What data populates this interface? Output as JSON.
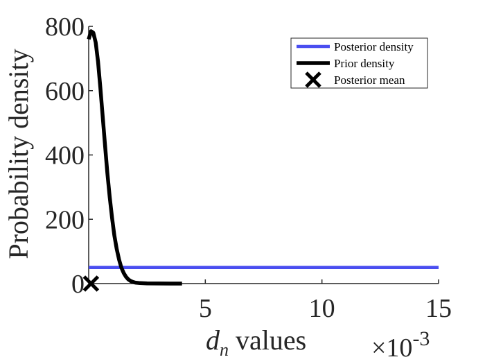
{
  "chart_data": {
    "type": "line",
    "xlabel_var": "d",
    "xlabel_sub": "n",
    "xlabel_rest": " values",
    "ylabel": "Probability density",
    "x_multiplier": {
      "base": "×10",
      "exponent": "-3"
    },
    "xlim": [
      0,
      15
    ],
    "ylim": [
      0,
      800
    ],
    "x_ticks": [
      5,
      10,
      15
    ],
    "x_tick_labels": [
      "5",
      "10",
      "15"
    ],
    "y_ticks": [
      0,
      200,
      400,
      600,
      800
    ],
    "y_tick_labels": [
      "0",
      "200",
      "400",
      "600",
      "800"
    ],
    "grid": false,
    "legend_position": "top-right",
    "series": [
      {
        "name": "Posterior density",
        "style": "line",
        "color": "#4a4ef0",
        "x": [
          0,
          15
        ],
        "y": [
          50,
          50
        ]
      },
      {
        "name": "Prior density",
        "style": "line",
        "color": "#000000",
        "x": [
          0,
          0.1,
          0.2,
          0.3,
          0.4,
          0.5,
          0.6,
          0.7,
          0.8,
          0.9,
          1.0,
          1.1,
          1.2,
          1.3,
          1.4,
          1.5,
          1.6,
          1.7,
          1.8,
          1.9,
          2.0,
          2.2,
          2.5,
          3.0,
          3.5,
          4.0
        ],
        "y": [
          760,
          785,
          780,
          750,
          690,
          610,
          520,
          430,
          345,
          270,
          205,
          150,
          108,
          75,
          50,
          33,
          21,
          13,
          8,
          5,
          3,
          1.5,
          0.5,
          0.2,
          0.1,
          0
        ]
      },
      {
        "name": "Posterior mean",
        "style": "marker",
        "marker": "x",
        "color": "#000000",
        "x": [
          0.1
        ],
        "y": [
          0
        ]
      }
    ]
  }
}
